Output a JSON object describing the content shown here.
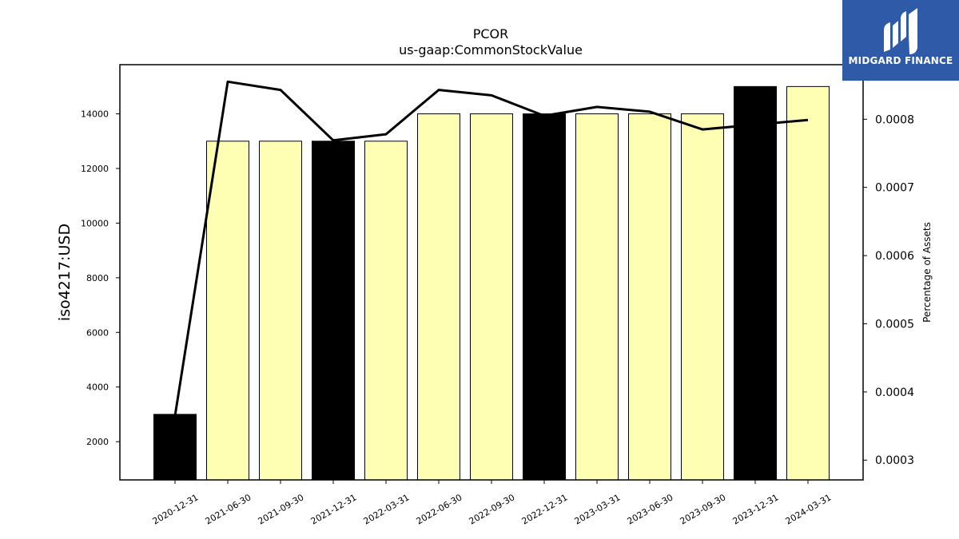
{
  "chart_data": {
    "type": "bar+line",
    "title": "PCOR",
    "subtitle": "us-gaap:CommonStockValue",
    "ylabel": "iso4217:USD",
    "y2label": "Percentage of Assets",
    "categories": [
      "2020-12-31",
      "2021-06-30",
      "2021-09-30",
      "2021-12-31",
      "2022-03-31",
      "2022-06-30",
      "2022-09-30",
      "2022-12-31",
      "2023-03-31",
      "2023-06-30",
      "2023-09-30",
      "2023-12-31",
      "2024-03-31"
    ],
    "bar_values": [
      3000,
      13000,
      13000,
      13000,
      13000,
      14000,
      14000,
      14000,
      14000,
      14000,
      14000,
      15000,
      15000
    ],
    "bar_is_annual": [
      true,
      false,
      false,
      true,
      false,
      false,
      false,
      true,
      false,
      false,
      false,
      true,
      false
    ],
    "line_values": [
      0.000365,
      0.000855,
      0.000843,
      0.000769,
      0.000778,
      0.000843,
      0.000835,
      0.000805,
      0.000818,
      0.000811,
      0.000785,
      0.000792,
      0.000799
    ],
    "ylim": [
      600,
      15800
    ],
    "y2lim": [
      0.000271,
      0.00088
    ],
    "yticks": [
      2000,
      4000,
      6000,
      8000,
      10000,
      12000,
      14000
    ],
    "y2ticks": [
      "0.0003",
      "0.0004",
      "0.0005",
      "0.0006",
      "0.0007",
      "0.0008"
    ],
    "colors": {
      "annual_bar": "#000000",
      "quarter_bar": "#ffffb3",
      "line": "#000000"
    },
    "grid": false,
    "legend": "none"
  },
  "logo": {
    "text": "MIDGARD FINANCE"
  }
}
